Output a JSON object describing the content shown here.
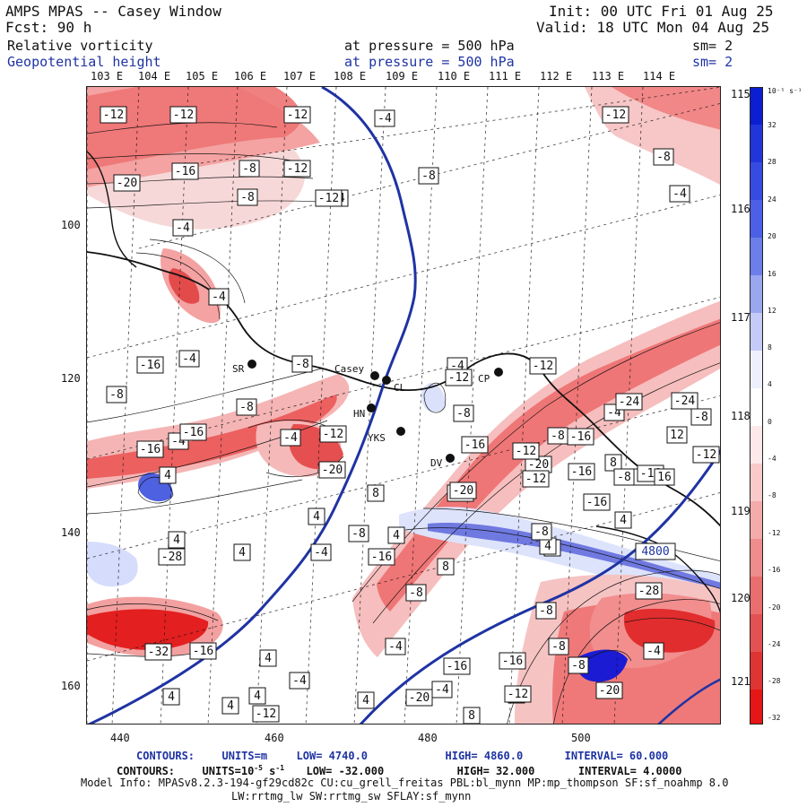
{
  "header": {
    "title": "AMPS MPAS -- Casey Window",
    "forecast": "Fcst:    90 h",
    "init": "Init: 00 UTC Fri 01 Aug 25",
    "valid": "Valid: 18 UTC Mon 04 Aug 25",
    "field1_name": "Relative vorticity",
    "field1_level": "at pressure =  500 hPa",
    "field1_sm": "sm= 2",
    "field2_name": "Geopotential height",
    "field2_level": "at pressure =  500 hPa",
    "field2_sm": "sm= 2"
  },
  "map": {
    "longitude_labels": [
      "103 E",
      "104 E",
      "105 E",
      "106 E",
      "107 E",
      "108 E",
      "109 E",
      "110 E",
      "111 E",
      "112 E",
      "113 E",
      "114 E"
    ],
    "latitude_labels": [
      "115 E",
      "116 E",
      "117 E",
      "118 E",
      "119 E",
      "120 E",
      "121 E"
    ],
    "y_axis_labels": [
      "100",
      "120",
      "140",
      "160"
    ],
    "x_axis_labels": [
      "440",
      "460",
      "480",
      "500"
    ],
    "sites": [
      {
        "name": "SR"
      },
      {
        "name": "Casey"
      },
      {
        "name": "CL"
      },
      {
        "name": "HN"
      },
      {
        "name": "YKS"
      },
      {
        "name": "DV"
      },
      {
        "name": "CP"
      }
    ],
    "contour_labels": [
      "-12",
      "-12",
      "-12",
      "-4",
      "-12",
      "-8",
      "-16",
      "-8",
      "-12",
      "-4",
      "-20",
      "-8",
      "-4",
      "-12",
      "-8",
      "-4",
      "-4",
      "-16",
      "-4",
      "-8",
      "-4",
      "-12",
      "-8",
      "-8",
      "-4",
      "-16",
      "-4",
      "-16",
      "-12",
      "-24",
      "-12",
      "-8",
      "-4",
      "-20",
      "-16",
      "-20",
      "-16",
      "-12",
      "-12",
      "-8",
      "-24",
      "-16",
      "-8",
      "4",
      "-16",
      "-12",
      "8",
      "-12",
      "-16",
      "12",
      "-20",
      "-16",
      "-8",
      "16",
      "8",
      "4",
      "4",
      "-28",
      "-8",
      "4",
      "8",
      "4",
      "-16",
      "-4",
      "4",
      "4",
      "-8",
      "-28",
      "-8",
      "-4",
      "8",
      "-8",
      "-8",
      "-8",
      "4",
      "-20",
      "-16",
      "-32",
      "-16",
      "4",
      "-4",
      "-4",
      "-16",
      "-12",
      "4",
      "-20",
      "-4",
      "8",
      "4",
      "4",
      "-12",
      "4"
    ],
    "special_labels": [
      "4800"
    ]
  },
  "colorbar": {
    "unit": "10⁻⁵ s⁻¹",
    "ticks": [
      "32",
      "28",
      "24",
      "20",
      "16",
      "12",
      "8",
      "4",
      "0",
      "-4",
      "-8",
      "-12",
      "-16",
      "-20",
      "-24",
      "-28",
      "-32"
    ]
  },
  "footer": {
    "line1_contours": "CONTOURS:",
    "line1_units": "UNITS=m",
    "line1_low": "LOW=  4740.0",
    "line1_high": "HIGH=  4860.0",
    "line1_interval": "INTERVAL=   60.000",
    "line2_contours": "CONTOURS:",
    "line2_units": "UNITS=10",
    "line2_units_sup1": "-5",
    "line2_units_mid": " s",
    "line2_units_sup2": "-1",
    "line2_low": "LOW= -32.000",
    "line2_high": "HIGH=  32.000",
    "line2_interval": "INTERVAL=    4.0000",
    "model_info": "Model Info: MPASv8.2.3-194-gf29cd82c CU:cu_grell_freitas PBL:bl_mynn MP:mp_thompson SF:sf_noahmp 8.0",
    "model_info2": "LW:rrtmg_lw SW:rrtmg_sw SFLAY:sf_mynn"
  },
  "colors": {
    "positive_dark": "#1111cc",
    "positive_mid": "#4a56d8",
    "positive_light": "#b8c4f4",
    "negative_light": "#f6d6d6",
    "negative_mid": "#ef7f7f",
    "negative_dark": "#e61c1c",
    "height_line": "#1f33a3"
  }
}
